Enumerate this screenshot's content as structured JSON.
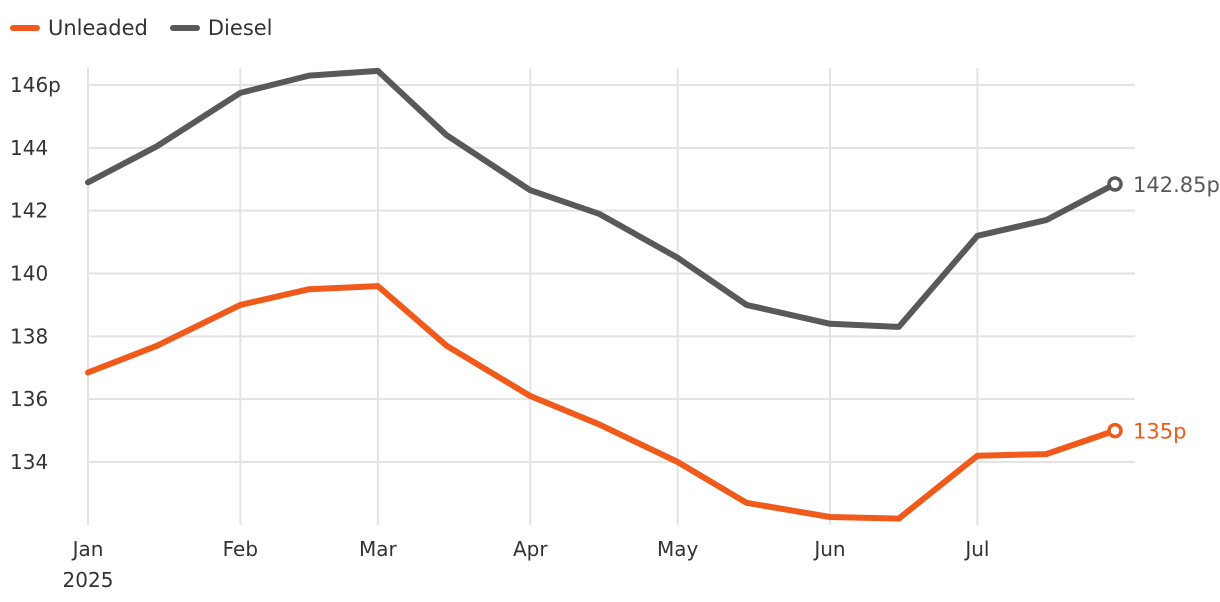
{
  "chart_data": {
    "type": "line",
    "title": "",
    "xlabel": "",
    "ylabel": "",
    "x": [
      "2025-01-01",
      "2025-01-15",
      "2025-02-01",
      "2025-02-15",
      "2025-03-01",
      "2025-03-15",
      "2025-04-01",
      "2025-04-15",
      "2025-05-01",
      "2025-05-15",
      "2025-06-01",
      "2025-06-15",
      "2025-07-01",
      "2025-07-15",
      "2025-07-29"
    ],
    "series": [
      {
        "name": "Unleaded",
        "color": "#f05a1a",
        "values": [
          136.85,
          137.7,
          139.0,
          139.5,
          139.6,
          137.7,
          136.1,
          135.2,
          134.0,
          132.7,
          132.25,
          132.2,
          134.2,
          134.25,
          135.0
        ],
        "end_label": "135p"
      },
      {
        "name": "Diesel",
        "color": "#595959",
        "values": [
          142.9,
          144.05,
          145.75,
          146.3,
          146.45,
          144.4,
          142.65,
          141.9,
          140.5,
          139.0,
          138.4,
          138.3,
          141.2,
          141.7,
          142.85
        ],
        "end_label": "142.85p"
      }
    ],
    "x_ticks": [
      {
        "date": "2025-01-01",
        "label": "Jan",
        "sublabel": "2025"
      },
      {
        "date": "2025-02-01",
        "label": "Feb"
      },
      {
        "date": "2025-03-01",
        "label": "Mar"
      },
      {
        "date": "2025-04-01",
        "label": "Apr"
      },
      {
        "date": "2025-05-01",
        "label": "May"
      },
      {
        "date": "2025-06-01",
        "label": "Jun"
      },
      {
        "date": "2025-07-01",
        "label": "Jul"
      }
    ],
    "y_ticks": [
      {
        "value": 146,
        "label": "146p"
      },
      {
        "value": 144,
        "label": "144"
      },
      {
        "value": 142,
        "label": "142"
      },
      {
        "value": 140,
        "label": "140"
      },
      {
        "value": 138,
        "label": "138"
      },
      {
        "value": 136,
        "label": "136"
      },
      {
        "value": 134,
        "label": "134"
      }
    ],
    "xlim": [
      "2025-01-01",
      "2025-07-29"
    ],
    "ylim": [
      132.0,
      146.4
    ],
    "grid": true,
    "legend_position": "top-left"
  }
}
